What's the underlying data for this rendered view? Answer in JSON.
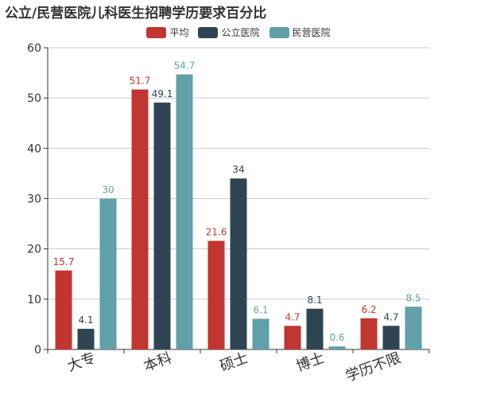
{
  "chart_data": {
    "type": "bar",
    "title": "公立/民营医院儿科医生招聘学历要求百分比",
    "categories": [
      "大专",
      "本科",
      "硕士",
      "博士",
      "学历不限"
    ],
    "series": [
      {
        "name": "平均",
        "color": "#c23531",
        "values": [
          15.7,
          51.7,
          21.6,
          4.7,
          6.2
        ]
      },
      {
        "name": "公立医院",
        "color": "#2f4554",
        "values": [
          4.1,
          49.1,
          34,
          8.1,
          4.7
        ]
      },
      {
        "name": "民营医院",
        "color": "#61a0a8",
        "values": [
          30,
          54.7,
          6.1,
          0.6,
          8.5
        ]
      }
    ],
    "ylim": [
      0,
      60
    ],
    "yticks": [
      0,
      10,
      20,
      30,
      40,
      50,
      60
    ],
    "grid": true,
    "legend_position": "top-center",
    "xlabel": "",
    "ylabel": ""
  }
}
